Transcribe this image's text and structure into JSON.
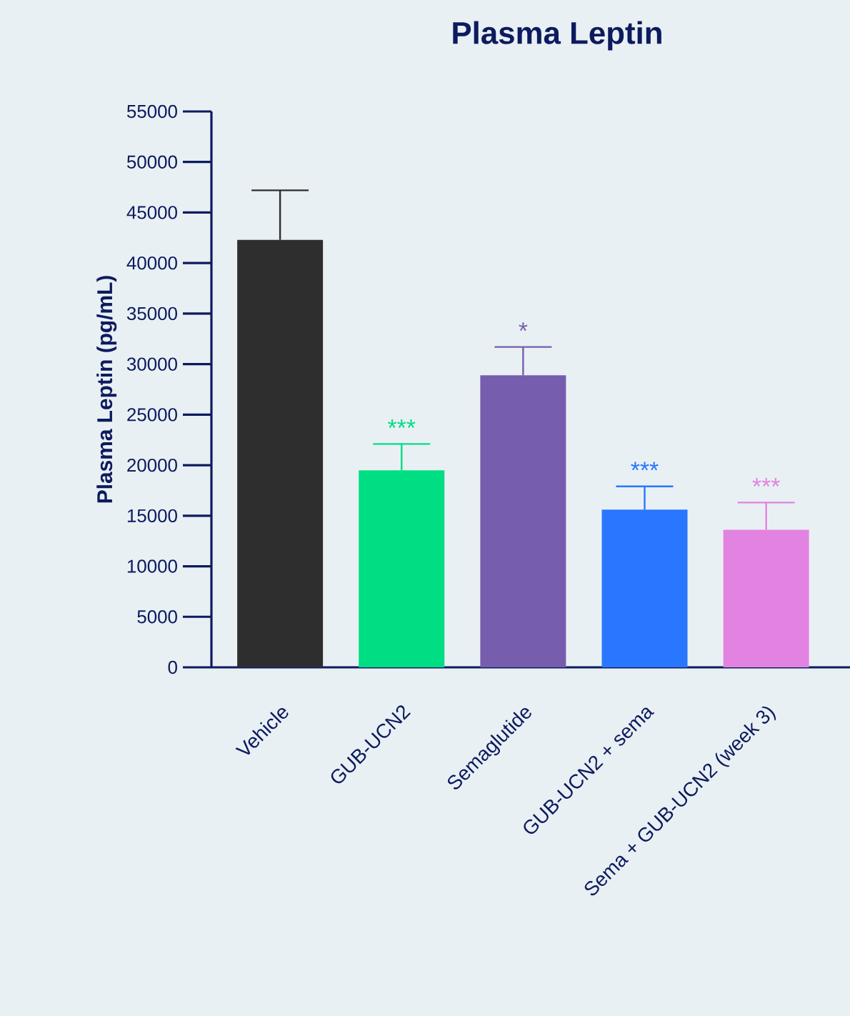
{
  "chart_data": {
    "type": "bar",
    "title": "Plasma Leptin",
    "ylabel": "Plasma Leptin (pg/mL)",
    "categories": [
      "Vehicle",
      "GUB-UCN2",
      "Semaglutide",
      "GUB-UCN2 + sema",
      "Sema + GUB-UCN2 (week 3)"
    ],
    "values": [
      42300,
      19500,
      28900,
      15600,
      13600
    ],
    "errors": [
      [
        42300,
        47200
      ],
      [
        19500,
        22100
      ],
      [
        28900,
        31700
      ],
      [
        15600,
        17900
      ],
      [
        13600,
        16300
      ]
    ],
    "value_labels": [
      null,
      "***",
      "*",
      "***",
      "***"
    ],
    "colors": [
      "#2e2e2e",
      "#00de84",
      "#765dad",
      "#2877fe",
      "#e283e2"
    ],
    "ylim": [
      0,
      55000
    ],
    "yticks": [
      0,
      5000,
      10000,
      15000,
      20000,
      25000,
      30000,
      35000,
      40000,
      45000,
      50000,
      55000
    ],
    "grid": false
  }
}
